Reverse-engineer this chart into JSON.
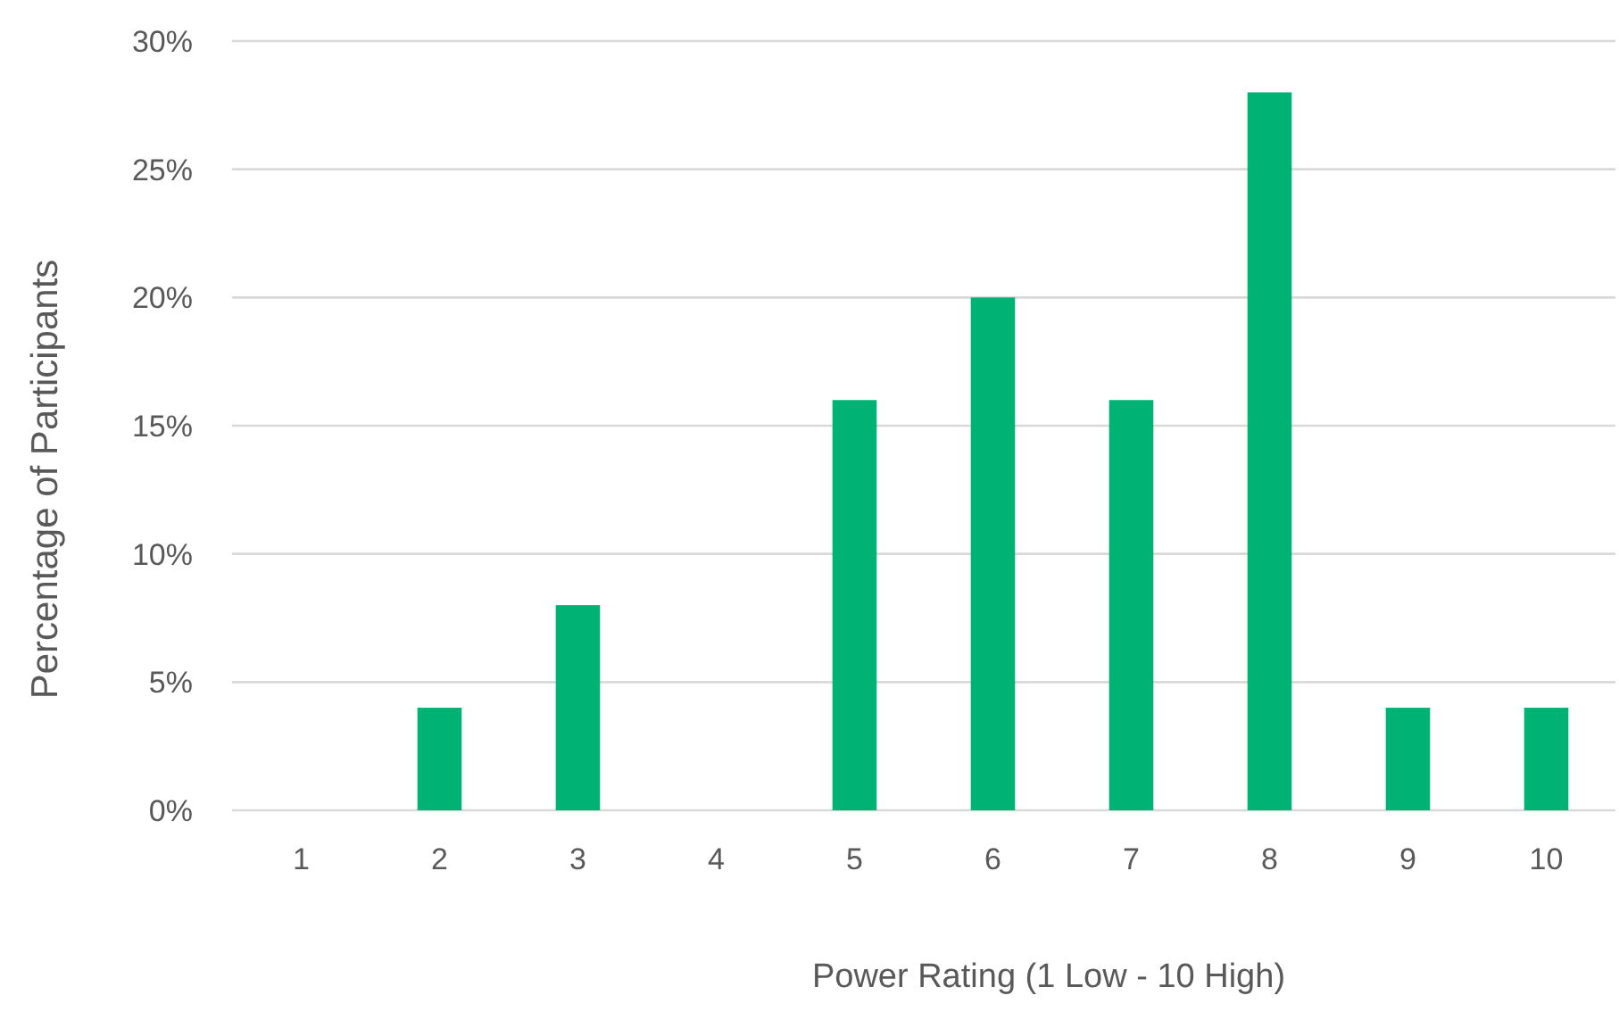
{
  "chart_data": {
    "type": "bar",
    "xlabel": "Power Rating (1 Low - 10 High)",
    "ylabel": "Percentage of Participants",
    "categories": [
      "1",
      "2",
      "3",
      "4",
      "5",
      "6",
      "7",
      "8",
      "9",
      "10"
    ],
    "values": [
      0,
      4,
      8,
      0,
      16,
      20,
      16,
      28,
      4,
      4
    ],
    "color": "#00b274",
    "ylim": [
      0,
      30
    ],
    "yticks": [
      {
        "value": 0,
        "label": "0%"
      },
      {
        "value": 5,
        "label": "5%"
      },
      {
        "value": 10,
        "label": "10%"
      },
      {
        "value": 15,
        "label": "15%"
      },
      {
        "value": 20,
        "label": "20%"
      },
      {
        "value": 25,
        "label": "25%"
      },
      {
        "value": 30,
        "label": "30%"
      }
    ],
    "grid": "y"
  }
}
